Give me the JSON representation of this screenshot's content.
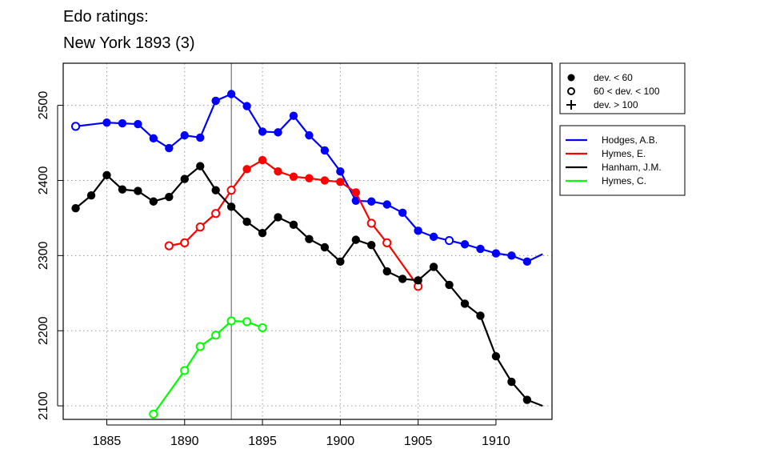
{
  "chart_data": {
    "type": "line",
    "title": "Edo ratings:",
    "subtitle": "New York 1893 (3)",
    "xlabel": "",
    "ylabel": "",
    "xlim": [
      1882.2,
      1913.6
    ],
    "ylim": [
      2082,
      2556
    ],
    "x_ticks": [
      1885,
      1890,
      1895,
      1900,
      1905,
      1910
    ],
    "y_ticks": [
      2100,
      2200,
      2300,
      2400,
      2500
    ],
    "grid": true,
    "reference_line_x": 1893,
    "marker_legend": [
      {
        "symbol": "filled-circle",
        "label": "dev. < 60"
      },
      {
        "symbol": "open-circle",
        "label": "60 < dev. < 100"
      },
      {
        "symbol": "plus",
        "label": "dev. > 100"
      }
    ],
    "series": [
      {
        "name": "Hodges, A.B.",
        "color": "#0000ff",
        "points": [
          {
            "x": 1883,
            "y": 2472,
            "m": "open"
          },
          {
            "x": 1885,
            "y": 2477,
            "m": "filled"
          },
          {
            "x": 1886,
            "y": 2476,
            "m": "filled"
          },
          {
            "x": 1887,
            "y": 2475,
            "m": "filled"
          },
          {
            "x": 1888,
            "y": 2456,
            "m": "filled"
          },
          {
            "x": 1889,
            "y": 2443,
            "m": "filled"
          },
          {
            "x": 1890,
            "y": 2460,
            "m": "filled"
          },
          {
            "x": 1891,
            "y": 2457,
            "m": "filled"
          },
          {
            "x": 1892,
            "y": 2506,
            "m": "filled"
          },
          {
            "x": 1893,
            "y": 2515,
            "m": "filled"
          },
          {
            "x": 1894,
            "y": 2499,
            "m": "filled"
          },
          {
            "x": 1895,
            "y": 2465,
            "m": "filled"
          },
          {
            "x": 1896,
            "y": 2464,
            "m": "filled"
          },
          {
            "x": 1897,
            "y": 2486,
            "m": "filled"
          },
          {
            "x": 1898,
            "y": 2460,
            "m": "filled"
          },
          {
            "x": 1899,
            "y": 2440,
            "m": "filled"
          },
          {
            "x": 1900,
            "y": 2412,
            "m": "filled"
          },
          {
            "x": 1901,
            "y": 2373,
            "m": "filled"
          },
          {
            "x": 1902,
            "y": 2372,
            "m": "filled"
          },
          {
            "x": 1903,
            "y": 2368,
            "m": "filled"
          },
          {
            "x": 1904,
            "y": 2357,
            "m": "filled"
          },
          {
            "x": 1905,
            "y": 2333,
            "m": "filled"
          },
          {
            "x": 1906,
            "y": 2325,
            "m": "filled"
          },
          {
            "x": 1907,
            "y": 2320,
            "m": "open"
          },
          {
            "x": 1908,
            "y": 2315,
            "m": "filled"
          },
          {
            "x": 1909,
            "y": 2309,
            "m": "filled"
          },
          {
            "x": 1910,
            "y": 2303,
            "m": "filled"
          },
          {
            "x": 1911,
            "y": 2300,
            "m": "filled"
          },
          {
            "x": 1912,
            "y": 2292,
            "m": "filled"
          },
          {
            "x": 1913,
            "y": 2302,
            "m": "none"
          }
        ]
      },
      {
        "name": "Hymes, E.",
        "color": "#ff0000",
        "points": [
          {
            "x": 1889,
            "y": 2313,
            "m": "open"
          },
          {
            "x": 1890,
            "y": 2317,
            "m": "open"
          },
          {
            "x": 1891,
            "y": 2338,
            "m": "open"
          },
          {
            "x": 1892,
            "y": 2356,
            "m": "open"
          },
          {
            "x": 1893,
            "y": 2387,
            "m": "open"
          },
          {
            "x": 1894,
            "y": 2415,
            "m": "filled"
          },
          {
            "x": 1895,
            "y": 2427,
            "m": "filled"
          },
          {
            "x": 1896,
            "y": 2412,
            "m": "filled"
          },
          {
            "x": 1897,
            "y": 2405,
            "m": "filled"
          },
          {
            "x": 1898,
            "y": 2403,
            "m": "filled"
          },
          {
            "x": 1899,
            "y": 2400,
            "m": "filled"
          },
          {
            "x": 1900,
            "y": 2398,
            "m": "filled"
          },
          {
            "x": 1901,
            "y": 2384,
            "m": "filled"
          },
          {
            "x": 1902,
            "y": 2343,
            "m": "open"
          },
          {
            "x": 1903,
            "y": 2317,
            "m": "open"
          },
          {
            "x": 1905,
            "y": 2259,
            "m": "open"
          }
        ]
      },
      {
        "name": "Hanham, J.M.",
        "color": "#000000",
        "points": [
          {
            "x": 1883,
            "y": 2363,
            "m": "filled"
          },
          {
            "x": 1884,
            "y": 2380,
            "m": "filled"
          },
          {
            "x": 1885,
            "y": 2407,
            "m": "filled"
          },
          {
            "x": 1886,
            "y": 2388,
            "m": "filled"
          },
          {
            "x": 1887,
            "y": 2386,
            "m": "filled"
          },
          {
            "x": 1888,
            "y": 2372,
            "m": "filled"
          },
          {
            "x": 1889,
            "y": 2378,
            "m": "filled"
          },
          {
            "x": 1890,
            "y": 2402,
            "m": "filled"
          },
          {
            "x": 1891,
            "y": 2419,
            "m": "filled"
          },
          {
            "x": 1892,
            "y": 2387,
            "m": "filled"
          },
          {
            "x": 1893,
            "y": 2365,
            "m": "filled"
          },
          {
            "x": 1894,
            "y": 2345,
            "m": "filled"
          },
          {
            "x": 1895,
            "y": 2330,
            "m": "filled"
          },
          {
            "x": 1896,
            "y": 2351,
            "m": "filled"
          },
          {
            "x": 1897,
            "y": 2341,
            "m": "filled"
          },
          {
            "x": 1898,
            "y": 2322,
            "m": "filled"
          },
          {
            "x": 1899,
            "y": 2311,
            "m": "filled"
          },
          {
            "x": 1900,
            "y": 2292,
            "m": "filled"
          },
          {
            "x": 1901,
            "y": 2321,
            "m": "filled"
          },
          {
            "x": 1902,
            "y": 2314,
            "m": "filled"
          },
          {
            "x": 1903,
            "y": 2279,
            "m": "filled"
          },
          {
            "x": 1904,
            "y": 2269,
            "m": "filled"
          },
          {
            "x": 1905,
            "y": 2267,
            "m": "filled"
          },
          {
            "x": 1906,
            "y": 2285,
            "m": "filled"
          },
          {
            "x": 1907,
            "y": 2261,
            "m": "filled"
          },
          {
            "x": 1908,
            "y": 2236,
            "m": "filled"
          },
          {
            "x": 1909,
            "y": 2220,
            "m": "filled"
          },
          {
            "x": 1910,
            "y": 2166,
            "m": "filled"
          },
          {
            "x": 1911,
            "y": 2132,
            "m": "filled"
          },
          {
            "x": 1912,
            "y": 2108,
            "m": "filled"
          },
          {
            "x": 1913,
            "y": 2100,
            "m": "none"
          }
        ]
      },
      {
        "name": "Hymes, C.",
        "color": "#00ff00",
        "points": [
          {
            "x": 1888,
            "y": 2089,
            "m": "open"
          },
          {
            "x": 1890,
            "y": 2147,
            "m": "open"
          },
          {
            "x": 1891,
            "y": 2179,
            "m": "open"
          },
          {
            "x": 1892,
            "y": 2194,
            "m": "open"
          },
          {
            "x": 1893,
            "y": 2213,
            "m": "open"
          },
          {
            "x": 1894,
            "y": 2212,
            "m": "open"
          },
          {
            "x": 1895,
            "y": 2204,
            "m": "open"
          }
        ]
      }
    ]
  }
}
